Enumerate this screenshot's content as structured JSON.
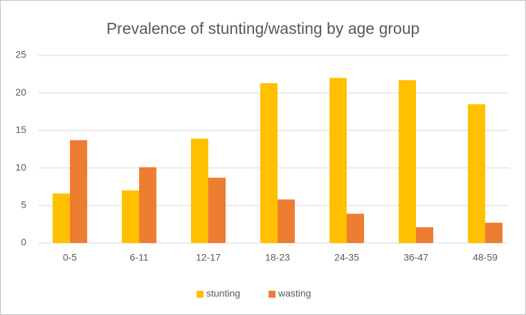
{
  "chart_data": {
    "type": "bar",
    "title": "Prevalence of stunting/wasting by age group",
    "categories": [
      "0-5",
      "6-11",
      "12-17",
      "18-23",
      "24-35",
      "36-47",
      "48-59"
    ],
    "series": [
      {
        "name": "stunting",
        "color": "#ffc000",
        "values": [
          6.6,
          7.0,
          13.9,
          21.3,
          22.0,
          21.7,
          18.5
        ]
      },
      {
        "name": "wasting",
        "color": "#ed7d31",
        "values": [
          13.7,
          10.1,
          8.7,
          5.8,
          3.9,
          2.1,
          2.7
        ]
      }
    ],
    "ylim": [
      0,
      25
    ],
    "yticks": [
      0,
      5,
      10,
      15,
      20,
      25
    ],
    "grid": true,
    "legend": "bottom"
  }
}
